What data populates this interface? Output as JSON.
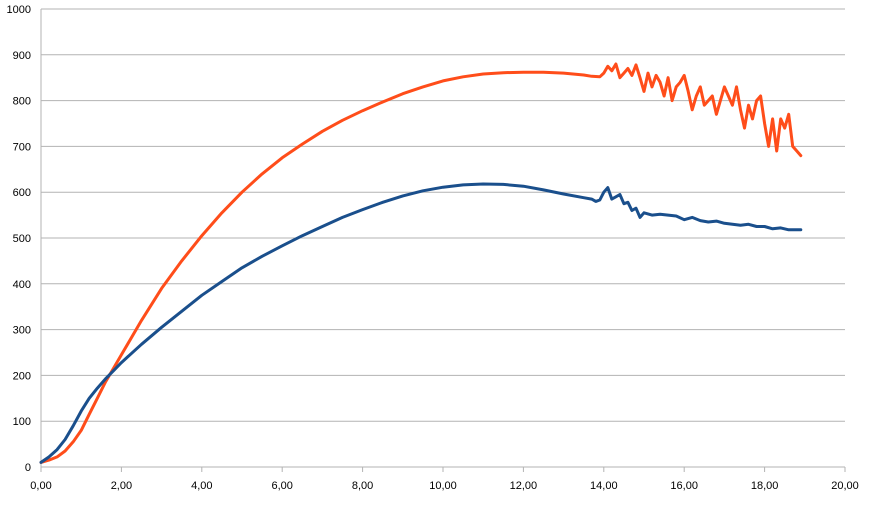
{
  "chart_data": {
    "type": "line",
    "title": "",
    "xlabel": "",
    "ylabel": "",
    "xlim": [
      0,
      20
    ],
    "ylim": [
      0,
      1000
    ],
    "x_ticks": [
      0,
      2,
      4,
      6,
      8,
      10,
      12,
      14,
      16,
      18,
      20
    ],
    "y_ticks": [
      0,
      100,
      200,
      300,
      400,
      500,
      600,
      700,
      800,
      900,
      1000
    ],
    "x_tick_labels": [
      "0,00",
      "2,00",
      "4,00",
      "6,00",
      "8,00",
      "10,00",
      "12,00",
      "14,00",
      "16,00",
      "18,00",
      "20,00"
    ],
    "y_tick_labels": [
      "0",
      "100",
      "200",
      "300",
      "400",
      "500",
      "600",
      "700",
      "800",
      "900",
      "1000"
    ],
    "grid": "horizontal",
    "legend": "none",
    "series": [
      {
        "color": "#ff4d1a",
        "x": [
          0.0,
          0.2,
          0.4,
          0.6,
          0.8,
          1.0,
          1.2,
          1.4,
          1.6,
          1.8,
          2.0,
          2.5,
          3.0,
          3.5,
          4.0,
          4.5,
          5.0,
          5.5,
          6.0,
          6.5,
          7.0,
          7.5,
          8.0,
          8.5,
          9.0,
          9.5,
          10.0,
          10.5,
          11.0,
          11.5,
          12.0,
          12.5,
          13.0,
          13.5,
          13.7,
          13.9,
          14.0,
          14.1,
          14.2,
          14.3,
          14.4,
          14.5,
          14.6,
          14.7,
          14.8,
          14.9,
          15.0,
          15.1,
          15.2,
          15.3,
          15.4,
          15.5,
          15.6,
          15.7,
          15.8,
          15.9,
          16.0,
          16.1,
          16.2,
          16.3,
          16.4,
          16.5,
          16.6,
          16.7,
          16.8,
          16.9,
          17.0,
          17.1,
          17.2,
          17.3,
          17.4,
          17.5,
          17.6,
          17.7,
          17.8,
          17.9,
          18.0,
          18.1,
          18.2,
          18.3,
          18.4,
          18.5,
          18.6,
          18.7,
          18.8,
          18.9
        ],
        "y": [
          10,
          15,
          22,
          35,
          55,
          80,
          115,
          150,
          185,
          215,
          245,
          320,
          390,
          450,
          505,
          555,
          600,
          640,
          675,
          705,
          733,
          757,
          778,
          797,
          815,
          830,
          843,
          852,
          858,
          861,
          862,
          862,
          860,
          856,
          853,
          852,
          860,
          875,
          865,
          880,
          850,
          860,
          870,
          855,
          878,
          850,
          820,
          860,
          830,
          855,
          840,
          810,
          850,
          800,
          830,
          840,
          855,
          820,
          780,
          810,
          830,
          790,
          800,
          810,
          770,
          800,
          830,
          810,
          790,
          830,
          780,
          740,
          790,
          760,
          800,
          810,
          750,
          700,
          760,
          690,
          760,
          740,
          770,
          700,
          690,
          680
        ]
      },
      {
        "color": "#1a4f8c",
        "x": [
          0.0,
          0.2,
          0.4,
          0.6,
          0.8,
          1.0,
          1.2,
          1.4,
          1.6,
          1.8,
          2.0,
          2.5,
          3.0,
          3.5,
          4.0,
          4.5,
          5.0,
          5.5,
          6.0,
          6.5,
          7.0,
          7.5,
          8.0,
          8.5,
          9.0,
          9.5,
          10.0,
          10.5,
          11.0,
          11.5,
          12.0,
          12.5,
          13.0,
          13.5,
          13.7,
          13.8,
          13.9,
          14.0,
          14.1,
          14.2,
          14.3,
          14.4,
          14.5,
          14.6,
          14.7,
          14.8,
          14.9,
          15.0,
          15.2,
          15.4,
          15.6,
          15.8,
          16.0,
          16.2,
          16.4,
          16.6,
          16.8,
          17.0,
          17.2,
          17.4,
          17.6,
          17.8,
          18.0,
          18.2,
          18.4,
          18.6,
          18.8,
          18.9
        ],
        "y": [
          10,
          22,
          38,
          60,
          90,
          122,
          150,
          172,
          192,
          210,
          228,
          268,
          305,
          340,
          375,
          405,
          435,
          460,
          483,
          505,
          525,
          545,
          562,
          578,
          592,
          603,
          611,
          616,
          618,
          617,
          613,
          605,
          596,
          588,
          585,
          580,
          583,
          600,
          610,
          585,
          590,
          595,
          575,
          578,
          560,
          565,
          545,
          555,
          550,
          552,
          550,
          548,
          540,
          545,
          538,
          535,
          537,
          532,
          530,
          528,
          530,
          525,
          525,
          520,
          522,
          518,
          518,
          518
        ]
      }
    ]
  }
}
